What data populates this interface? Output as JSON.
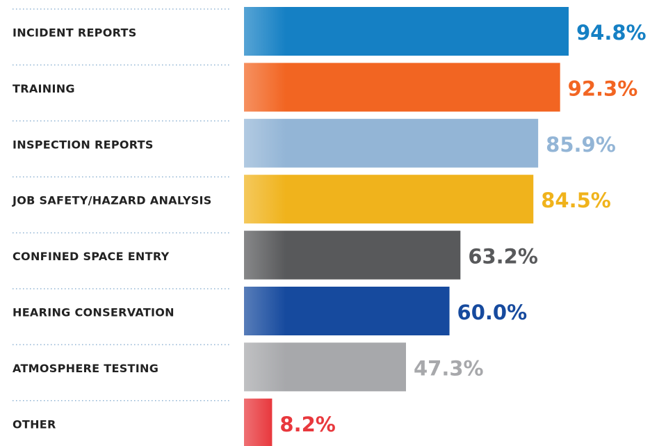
{
  "chart_data": {
    "type": "hbar",
    "categories": [
      "INCIDENT REPORTS",
      "TRAINING",
      "INSPECTION REPORTS",
      "JOB SAFETY/HAZARD ANALYSIS",
      "CONFINED SPACE ENTRY",
      "HEARING CONSERVATION",
      "ATMOSPHERE TESTING",
      "OTHER"
    ],
    "values": [
      94.8,
      92.3,
      85.9,
      84.5,
      63.2,
      60.0,
      47.3,
      8.2
    ],
    "value_labels": [
      "94.8%",
      "92.3%",
      "85.9%",
      "84.5%",
      "63.2%",
      "60.0%",
      "47.3%",
      "8.2%"
    ],
    "colors": [
      "#1580c4",
      "#f26522",
      "#93b5d6",
      "#f0b31c",
      "#58595b",
      "#164a9e",
      "#a7a8ab",
      "#e8383d"
    ],
    "xlim": [
      0,
      100
    ]
  }
}
